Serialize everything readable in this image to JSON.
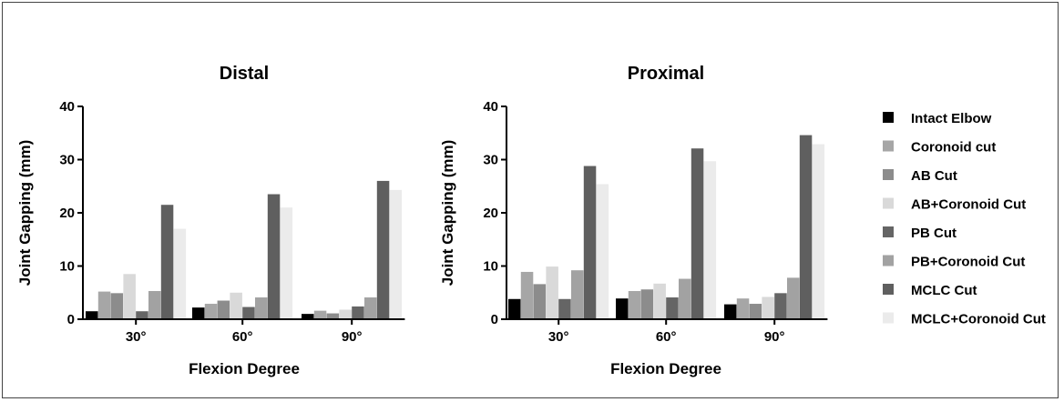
{
  "series_colors": [
    "#000000",
    "#a6a6a6",
    "#8c8c8c",
    "#d9d9d9",
    "#656565",
    "#a2a2a2",
    "#5f5f5f",
    "#ebebeb"
  ],
  "legend": {
    "items": [
      "Intact Elbow",
      "Coronoid cut",
      "AB Cut",
      "AB+Coronoid Cut",
      "PB Cut",
      "PB+Coronoid Cut",
      "MCLC Cut",
      "MCLC+Coronoid Cut"
    ]
  },
  "chart_data": [
    {
      "type": "bar",
      "title": "Distal",
      "xlabel": "Flexion Degree",
      "ylabel": "Joint Gapping (mm)",
      "ylim": [
        0,
        40
      ],
      "yticks": [
        "0",
        "10",
        "20",
        "30",
        "40"
      ],
      "categories": [
        "30°",
        "60°",
        "90°"
      ],
      "series": [
        {
          "name": "Intact Elbow",
          "values": [
            1.5,
            2.2,
            1.0
          ]
        },
        {
          "name": "Coronoid cut",
          "values": [
            5.2,
            2.9,
            1.6
          ]
        },
        {
          "name": "AB Cut",
          "values": [
            4.9,
            3.5,
            1.1
          ]
        },
        {
          "name": "AB+Coronoid Cut",
          "values": [
            8.5,
            5.0,
            1.8
          ]
        },
        {
          "name": "PB Cut",
          "values": [
            1.5,
            2.3,
            2.4
          ]
        },
        {
          "name": "PB+Coronoid Cut",
          "values": [
            5.3,
            4.1,
            4.1
          ]
        },
        {
          "name": "MCLC Cut",
          "values": [
            21.5,
            23.5,
            26.0
          ]
        },
        {
          "name": "MCLC+Coronoid Cut",
          "values": [
            17.0,
            21.0,
            24.3
          ]
        }
      ]
    },
    {
      "type": "bar",
      "title": "Proximal",
      "xlabel": "Flexion Degree",
      "ylabel": "Joint Gapping (mm)",
      "ylim": [
        0,
        40
      ],
      "yticks": [
        "0",
        "10",
        "20",
        "30",
        "40"
      ],
      "categories": [
        "30°",
        "60°",
        "90°"
      ],
      "series": [
        {
          "name": "Intact Elbow",
          "values": [
            3.8,
            3.9,
            2.8
          ]
        },
        {
          "name": "Coronoid cut",
          "values": [
            8.9,
            5.3,
            3.9
          ]
        },
        {
          "name": "AB Cut",
          "values": [
            6.6,
            5.6,
            2.9
          ]
        },
        {
          "name": "AB+Coronoid Cut",
          "values": [
            9.9,
            6.7,
            4.2
          ]
        },
        {
          "name": "PB Cut",
          "values": [
            3.8,
            4.1,
            4.9
          ]
        },
        {
          "name": "PB+Coronoid Cut",
          "values": [
            9.2,
            7.6,
            7.8
          ]
        },
        {
          "name": "MCLC Cut",
          "values": [
            28.8,
            32.1,
            34.6
          ]
        },
        {
          "name": "MCLC+Coronoid Cut",
          "values": [
            25.4,
            29.7,
            32.9
          ]
        }
      ]
    }
  ]
}
